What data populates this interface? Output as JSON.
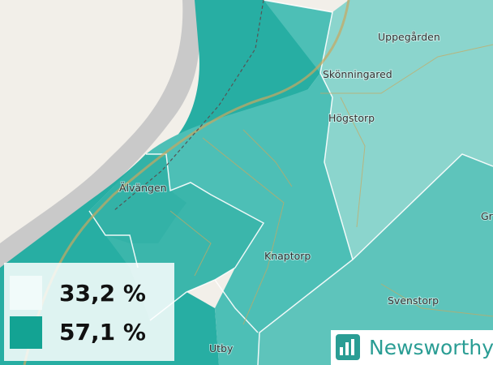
{
  "map": {
    "places": [
      "Uppegården",
      "Skönningared",
      "Högstorp",
      "Älvängen",
      "Knaptorp",
      "Svenstorp",
      "Utby",
      "Gr"
    ],
    "legend": [
      "33,2 %",
      "57,1 %"
    ],
    "logo": "Newsworthy"
  }
}
